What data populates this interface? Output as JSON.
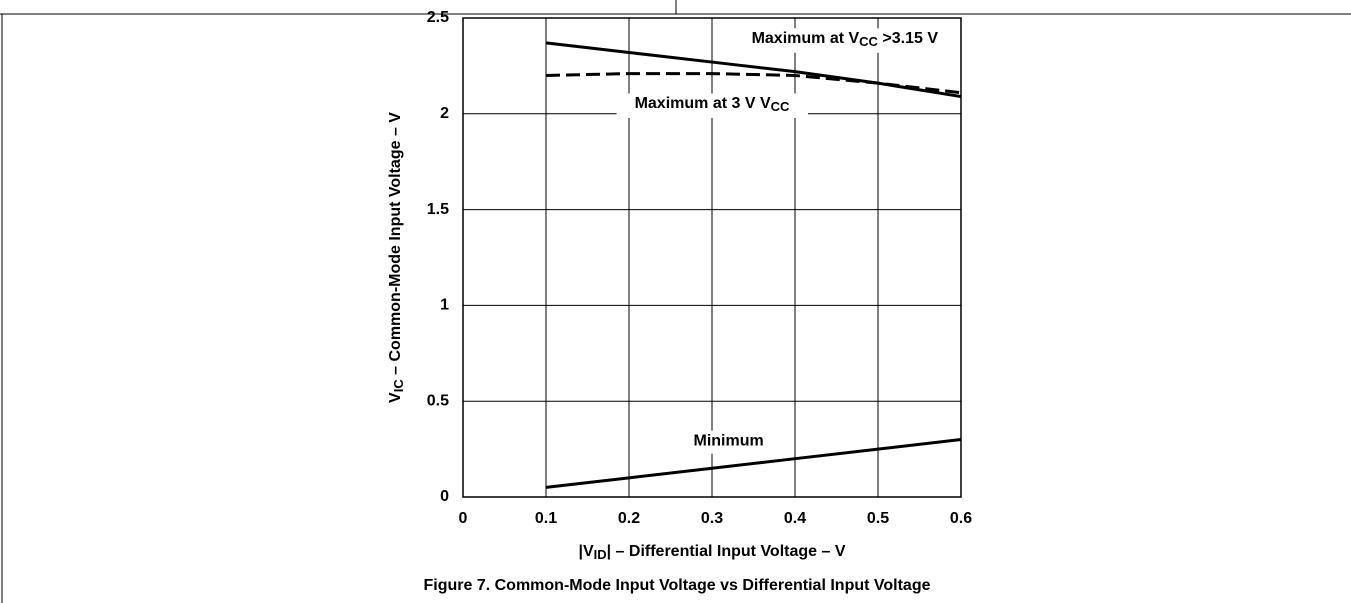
{
  "chart_data": {
    "type": "line",
    "caption": "Figure 7. Common-Mode Input Voltage vs Differential Input Voltage",
    "x_label": [
      "|V",
      "ID",
      "| – Differential Input Voltage – V"
    ],
    "y_label": [
      "V",
      "IC",
      " – Common-Mode Input Voltage – V"
    ],
    "x": [
      0.1,
      0.2,
      0.3,
      0.4,
      0.5,
      0.6
    ],
    "series": [
      {
        "color": "#000000",
        "dash": false,
        "values": [
          2.37,
          2.32,
          2.27,
          2.22,
          2.16,
          2.09
        ]
      },
      {
        "color": "#000000",
        "dash": true,
        "values": [
          2.2,
          2.21,
          2.21,
          2.2,
          2.16,
          2.11
        ]
      },
      {
        "color": "#000000",
        "dash": false,
        "values": [
          0.05,
          0.1,
          0.15,
          0.2,
          0.25,
          0.3
        ]
      }
    ],
    "annotations": [
      {
        "parts": [
          "Maximum at V",
          "CC",
          " >3.15 V"
        ],
        "x": 0.46,
        "y": 2.39
      },
      {
        "parts": [
          "Maximum at 3 V V",
          "CC",
          ""
        ],
        "x": 0.3,
        "y": 2.05
      },
      {
        "parts": [
          "Minimum"
        ],
        "x": 0.32,
        "y": 0.29
      }
    ],
    "xlim": [
      0,
      0.6
    ],
    "ylim": [
      0,
      2.5
    ],
    "xticks": [
      0,
      0.1,
      0.2,
      0.3,
      0.4,
      0.5,
      0.6
    ],
    "yticks": [
      0,
      0.5,
      1,
      1.5,
      2,
      2.5
    ],
    "grid": true
  }
}
